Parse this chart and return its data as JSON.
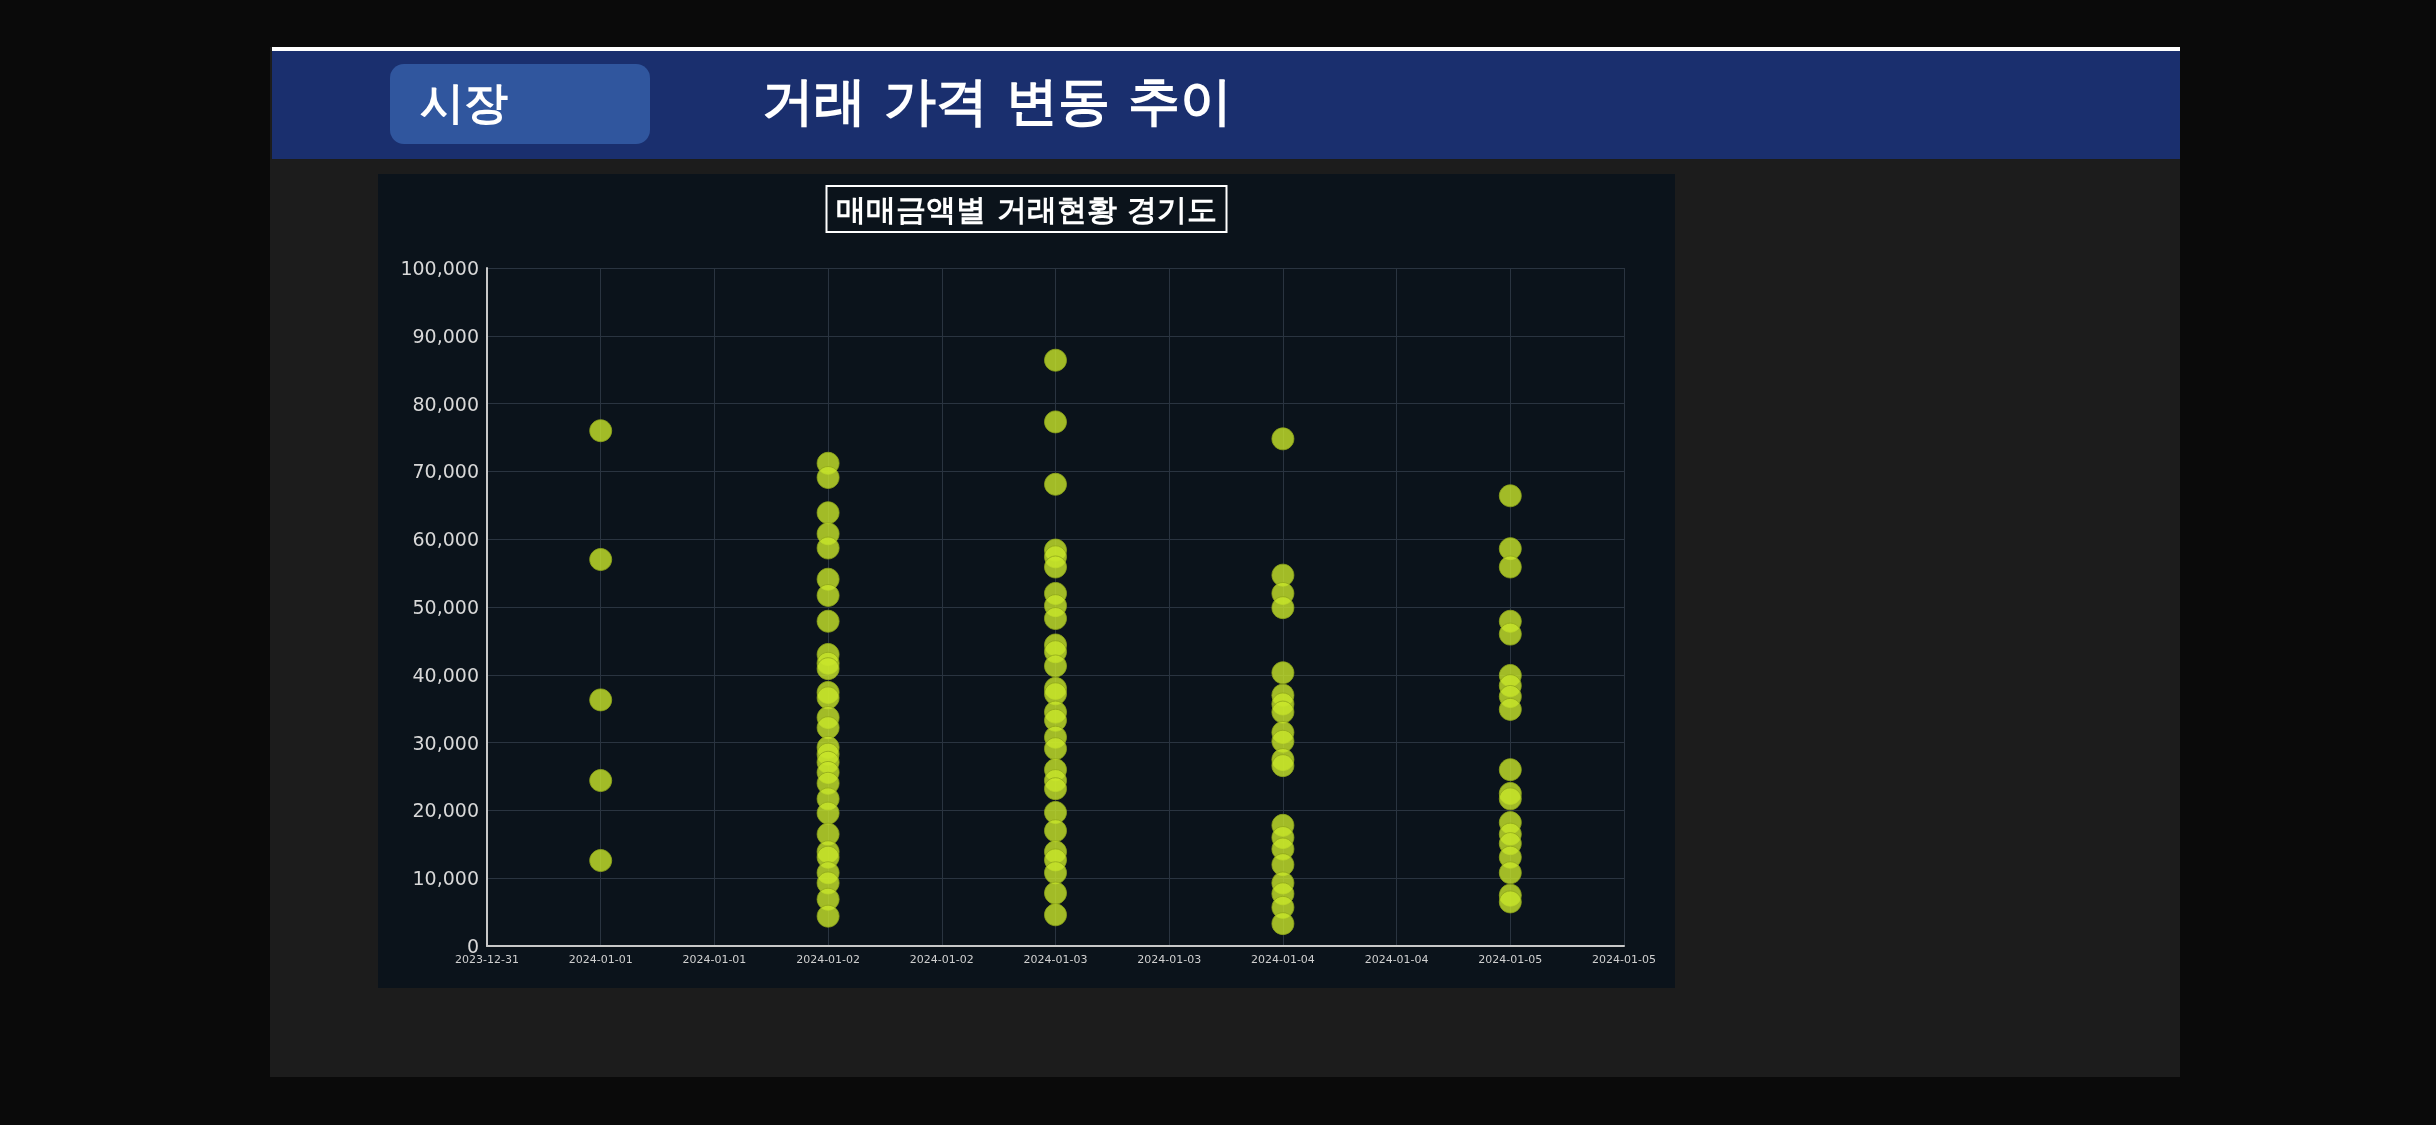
{
  "chart_data": {
    "type": "scatter",
    "title": "매매금액별 거래현황 경기도",
    "annotations": [
      "시장",
      "거래 가격 변동 추이"
    ],
    "marker": "circle",
    "grid": true,
    "series": [
      {
        "color": "#c8e62a",
        "x": [
          "2024-01-01",
          "2024-01-01",
          "2024-01-01",
          "2024-01-01",
          "2024-01-01",
          "2024-01-02",
          "2024-01-02",
          "2024-01-02",
          "2024-01-02",
          "2024-01-02",
          "2024-01-02",
          "2024-01-02",
          "2024-01-02",
          "2024-01-02",
          "2024-01-02",
          "2024-01-02",
          "2024-01-02",
          "2024-01-02",
          "2024-01-02",
          "2024-01-02",
          "2024-01-02",
          "2024-01-02",
          "2024-01-02",
          "2024-01-02",
          "2024-01-02",
          "2024-01-02",
          "2024-01-02",
          "2024-01-02",
          "2024-01-02",
          "2024-01-02",
          "2024-01-02",
          "2024-01-02",
          "2024-01-02",
          "2024-01-02",
          "2024-01-03",
          "2024-01-03",
          "2024-01-03",
          "2024-01-03",
          "2024-01-03",
          "2024-01-03",
          "2024-01-03",
          "2024-01-03",
          "2024-01-03",
          "2024-01-03",
          "2024-01-03",
          "2024-01-03",
          "2024-01-03",
          "2024-01-03",
          "2024-01-03",
          "2024-01-03",
          "2024-01-03",
          "2024-01-03",
          "2024-01-03",
          "2024-01-03",
          "2024-01-03",
          "2024-01-03",
          "2024-01-03",
          "2024-01-03",
          "2024-01-03",
          "2024-01-03",
          "2024-01-03",
          "2024-01-03",
          "2024-01-04",
          "2024-01-04",
          "2024-01-04",
          "2024-01-04",
          "2024-01-04",
          "2024-01-04",
          "2024-01-04",
          "2024-01-04",
          "2024-01-04",
          "2024-01-04",
          "2024-01-04",
          "2024-01-04",
          "2024-01-04",
          "2024-01-04",
          "2024-01-04",
          "2024-01-04",
          "2024-01-04",
          "2024-01-04",
          "2024-01-04",
          "2024-01-04",
          "2024-01-05",
          "2024-01-05",
          "2024-01-05",
          "2024-01-05",
          "2024-01-05",
          "2024-01-05",
          "2024-01-05",
          "2024-01-05",
          "2024-01-05",
          "2024-01-05",
          "2024-01-05",
          "2024-01-05",
          "2024-01-05",
          "2024-01-05",
          "2024-01-05",
          "2024-01-05",
          "2024-01-05",
          "2024-01-05",
          "2024-01-05"
        ],
        "values": [
          76000,
          57000,
          36300,
          24400,
          12600,
          71200,
          69100,
          63900,
          60800,
          58700,
          54100,
          51700,
          47900,
          43000,
          41700,
          40900,
          37400,
          36600,
          33700,
          32200,
          29300,
          28300,
          27100,
          25600,
          24000,
          21700,
          19600,
          16500,
          13900,
          13100,
          10800,
          9300,
          6900,
          4400,
          86400,
          77300,
          68100,
          58400,
          57400,
          55900,
          52000,
          50200,
          48300,
          44400,
          43400,
          41300,
          38000,
          37200,
          34500,
          33300,
          30800,
          29100,
          26000,
          24400,
          23200,
          19700,
          17000,
          13900,
          12700,
          10800,
          7800,
          4600,
          74800,
          54700,
          52000,
          49900,
          40300,
          37000,
          35700,
          34500,
          31500,
          30200,
          27500,
          26600,
          17800,
          16000,
          14300,
          12000,
          9300,
          7700,
          5700,
          3300,
          66400,
          58600,
          55900,
          47900,
          46000,
          39900,
          38400,
          36800,
          34900,
          26000,
          22500,
          21700,
          18200,
          16500,
          15100,
          13100,
          10800,
          7500,
          6500
        ]
      }
    ],
    "xlim": [
      "2023-12-31T12:00",
      "2024-01-05T12:00"
    ],
    "xticks": [
      {
        "value": "2023-12-31T12:00",
        "label": "2023-12-31"
      },
      {
        "value": "2024-01-01",
        "label": "2024-01-01"
      },
      {
        "value": "2024-01-01T12:00",
        "label": "2024-01-01"
      },
      {
        "value": "2024-01-02",
        "label": "2024-01-02"
      },
      {
        "value": "2024-01-02T12:00",
        "label": "2024-01-02"
      },
      {
        "value": "2024-01-03",
        "label": "2024-01-03"
      },
      {
        "value": "2024-01-03T12:00",
        "label": "2024-01-03"
      },
      {
        "value": "2024-01-04",
        "label": "2024-01-04"
      },
      {
        "value": "2024-01-04T12:00",
        "label": "2024-01-04"
      },
      {
        "value": "2024-01-05",
        "label": "2024-01-05"
      },
      {
        "value": "2024-01-05T12:00",
        "label": "2024-01-05"
      }
    ],
    "ylim": [
      0,
      100000
    ],
    "yticks": [
      {
        "value": 0,
        "label": "0"
      },
      {
        "value": 10000,
        "label": "10,000"
      },
      {
        "value": 20000,
        "label": "20,000"
      },
      {
        "value": 30000,
        "label": "30,000"
      },
      {
        "value": 40000,
        "label": "40,000"
      },
      {
        "value": 50000,
        "label": "50,000"
      },
      {
        "value": 60000,
        "label": "60,000"
      },
      {
        "value": 70000,
        "label": "70,000"
      },
      {
        "value": 80000,
        "label": "80,000"
      },
      {
        "value": 90000,
        "label": "90,000"
      },
      {
        "value": 100000,
        "label": "100,000"
      }
    ]
  }
}
